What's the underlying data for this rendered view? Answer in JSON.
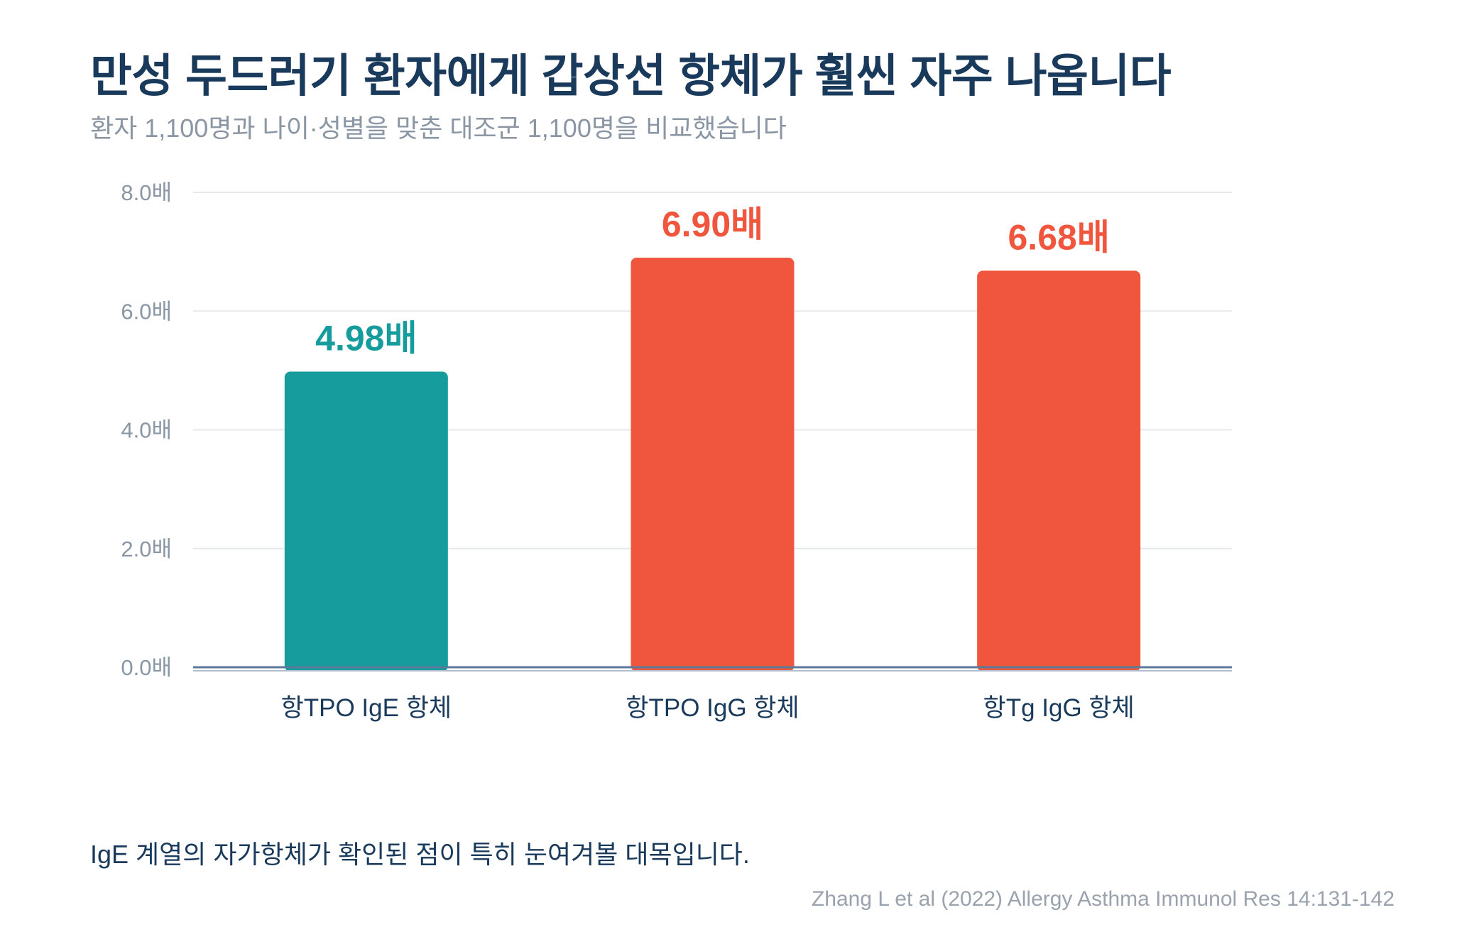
{
  "title": "만성 두드러기 환자에게 갑상선 항체가 훨씬 자주 나옵니다",
  "subtitle": "환자 1,100명과 나이·성별을 맞춘 대조군 1,100명을 비교했습니다",
  "note": "IgE 계열의 자가항체가 확인된 점이 특히 눈여겨볼 대목입니다.",
  "source": "Zhang L et al (2022) Allergy Asthma Immunol Res 14:131-142",
  "colors": {
    "teal": "#169c9c",
    "red": "#f0553d",
    "grid": "#e6e9ec",
    "axis": "#5a7a99",
    "tick": "#8a96a3",
    "title": "#1a3a5c"
  },
  "chart_data": {
    "type": "bar",
    "categories": [
      "항TPO IgE 항체",
      "항TPO IgG 항체",
      "항Tg IgG 항체"
    ],
    "values": [
      4.98,
      6.9,
      6.68
    ],
    "value_labels": [
      "4.98배",
      "6.90배",
      "6.68배"
    ],
    "bar_colors": [
      "#169c9c",
      "#f0553d",
      "#f0553d"
    ],
    "yticks": [
      0,
      2,
      4,
      6,
      8
    ],
    "ytick_labels": [
      "0.0배",
      "2.0배",
      "4.0배",
      "6.0배",
      "8.0배"
    ],
    "ylim": [
      0,
      8
    ],
    "grid": true
  }
}
